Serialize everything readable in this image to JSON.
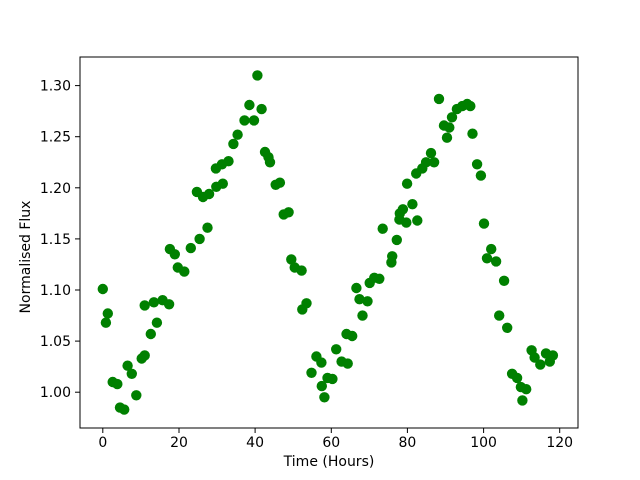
{
  "figure": {
    "background_color": "#ffffff",
    "title": ""
  },
  "chart_data": {
    "type": "scatter",
    "title": "",
    "xlabel": "Time (Hours)",
    "ylabel": "Normalised Flux",
    "marker": {
      "shape": "circle",
      "color": "#008000",
      "radius_px": 5.2
    },
    "grid": false,
    "legend": "none",
    "xlim": [
      -6.0,
      124.8
    ],
    "ylim": [
      0.965,
      1.328
    ],
    "x_ticks": [
      0,
      20,
      40,
      60,
      80,
      100,
      120
    ],
    "x_tick_labels": [
      "0",
      "20",
      "40",
      "60",
      "80",
      "100",
      "120"
    ],
    "y_ticks": [
      1.0,
      1.05,
      1.1,
      1.15,
      1.2,
      1.25,
      1.3
    ],
    "y_tick_labels": [
      "1.00",
      "1.05",
      "1.10",
      "1.15",
      "1.20",
      "1.25",
      "1.30"
    ],
    "points": [
      [
        0.0,
        1.101
      ],
      [
        0.8,
        1.068
      ],
      [
        1.3,
        1.077
      ],
      [
        2.6,
        1.01
      ],
      [
        3.8,
        1.008
      ],
      [
        4.5,
        0.985
      ],
      [
        5.6,
        0.983
      ],
      [
        6.5,
        1.026
      ],
      [
        7.6,
        1.018
      ],
      [
        8.8,
        0.997
      ],
      [
        10.2,
        1.033
      ],
      [
        11.0,
        1.036
      ],
      [
        11.0,
        1.085
      ],
      [
        12.6,
        1.057
      ],
      [
        13.4,
        1.088
      ],
      [
        14.2,
        1.068
      ],
      [
        15.7,
        1.09
      ],
      [
        17.4,
        1.086
      ],
      [
        17.6,
        1.14
      ],
      [
        18.9,
        1.135
      ],
      [
        19.7,
        1.122
      ],
      [
        21.4,
        1.118
      ],
      [
        23.1,
        1.141
      ],
      [
        24.7,
        1.196
      ],
      [
        25.4,
        1.15
      ],
      [
        26.3,
        1.191
      ],
      [
        27.5,
        1.161
      ],
      [
        27.9,
        1.194
      ],
      [
        29.7,
        1.219
      ],
      [
        29.8,
        1.201
      ],
      [
        31.3,
        1.223
      ],
      [
        31.5,
        1.204
      ],
      [
        33.0,
        1.226
      ],
      [
        34.3,
        1.243
      ],
      [
        35.4,
        1.252
      ],
      [
        37.2,
        1.266
      ],
      [
        38.5,
        1.281
      ],
      [
        39.7,
        1.266
      ],
      [
        40.6,
        1.31
      ],
      [
        41.7,
        1.277
      ],
      [
        42.6,
        1.235
      ],
      [
        43.5,
        1.23
      ],
      [
        43.9,
        1.225
      ],
      [
        45.4,
        1.203
      ],
      [
        46.5,
        1.205
      ],
      [
        47.5,
        1.174
      ],
      [
        48.8,
        1.176
      ],
      [
        49.5,
        1.13
      ],
      [
        50.4,
        1.122
      ],
      [
        52.2,
        1.119
      ],
      [
        52.4,
        1.081
      ],
      [
        53.5,
        1.087
      ],
      [
        54.8,
        1.019
      ],
      [
        56.1,
        1.035
      ],
      [
        57.4,
        1.029
      ],
      [
        57.5,
        1.006
      ],
      [
        58.2,
        0.995
      ],
      [
        59.0,
        1.014
      ],
      [
        60.3,
        1.013
      ],
      [
        61.3,
        1.042
      ],
      [
        62.7,
        1.03
      ],
      [
        64.0,
        1.057
      ],
      [
        64.3,
        1.028
      ],
      [
        65.5,
        1.055
      ],
      [
        66.6,
        1.102
      ],
      [
        67.4,
        1.091
      ],
      [
        68.2,
        1.075
      ],
      [
        69.5,
        1.089
      ],
      [
        70.1,
        1.107
      ],
      [
        71.3,
        1.112
      ],
      [
        72.6,
        1.111
      ],
      [
        73.5,
        1.16
      ],
      [
        75.8,
        1.127
      ],
      [
        76.0,
        1.133
      ],
      [
        77.2,
        1.149
      ],
      [
        77.9,
        1.169
      ],
      [
        78.0,
        1.175
      ],
      [
        78.8,
        1.179
      ],
      [
        79.7,
        1.166
      ],
      [
        79.9,
        1.204
      ],
      [
        81.3,
        1.184
      ],
      [
        82.3,
        1.214
      ],
      [
        82.6,
        1.168
      ],
      [
        83.9,
        1.219
      ],
      [
        84.9,
        1.225
      ],
      [
        86.2,
        1.234
      ],
      [
        87.0,
        1.225
      ],
      [
        88.3,
        1.287
      ],
      [
        89.6,
        1.261
      ],
      [
        90.4,
        1.249
      ],
      [
        91.0,
        1.259
      ],
      [
        91.7,
        1.269
      ],
      [
        93.0,
        1.277
      ],
      [
        94.4,
        1.28
      ],
      [
        95.7,
        1.282
      ],
      [
        96.5,
        1.28
      ],
      [
        97.1,
        1.253
      ],
      [
        98.3,
        1.223
      ],
      [
        99.3,
        1.212
      ],
      [
        100.1,
        1.165
      ],
      [
        100.9,
        1.131
      ],
      [
        102.0,
        1.14
      ],
      [
        103.3,
        1.128
      ],
      [
        104.1,
        1.075
      ],
      [
        105.4,
        1.109
      ],
      [
        106.2,
        1.063
      ],
      [
        107.5,
        1.018
      ],
      [
        108.8,
        1.014
      ],
      [
        109.8,
        1.005
      ],
      [
        110.2,
        0.992
      ],
      [
        111.2,
        1.003
      ],
      [
        112.6,
        1.041
      ],
      [
        113.4,
        1.034
      ],
      [
        114.9,
        1.027
      ],
      [
        116.4,
        1.038
      ],
      [
        117.4,
        1.03
      ],
      [
        118.2,
        1.036
      ]
    ]
  }
}
